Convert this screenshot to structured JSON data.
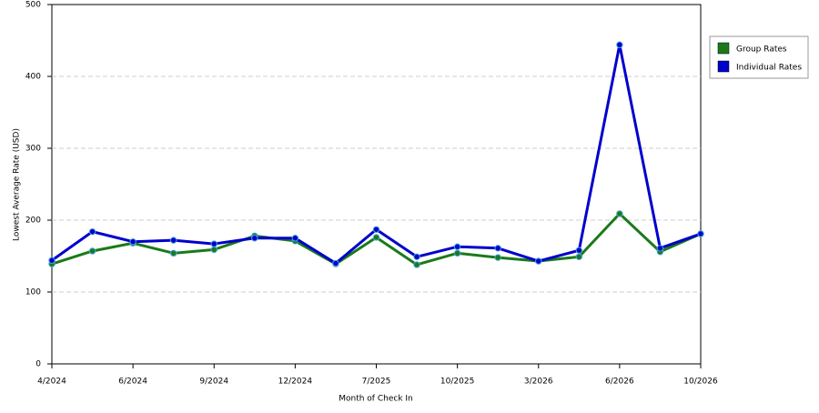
{
  "chart_data": {
    "type": "line",
    "xlabel": "Month of Check In",
    "ylabel": "Lowest Average Rate (USD)",
    "categories": [
      "4/2024",
      null,
      "6/2024",
      null,
      "9/2024",
      null,
      "12/2024",
      null,
      "7/2025",
      null,
      "10/2025",
      null,
      "3/2026",
      null,
      "6/2026",
      null,
      "10/2026"
    ],
    "series": [
      {
        "name": "Group Rates",
        "color": "#1a7a1a",
        "values": [
          139,
          157,
          168,
          154,
          159,
          178,
          171,
          139,
          176,
          138,
          154,
          148,
          143,
          149,
          209,
          156,
          181
        ]
      },
      {
        "name": "Individual Rates",
        "color": "#0000cc",
        "values": [
          144,
          184,
          170,
          172,
          167,
          175,
          175,
          140,
          187,
          149,
          163,
          161,
          143,
          158,
          444,
          161,
          181
        ]
      }
    ],
    "ylim": [
      0,
      500
    ],
    "yticks": [
      0,
      100,
      200,
      300,
      400,
      500
    ],
    "grid": true,
    "legend": "right"
  }
}
